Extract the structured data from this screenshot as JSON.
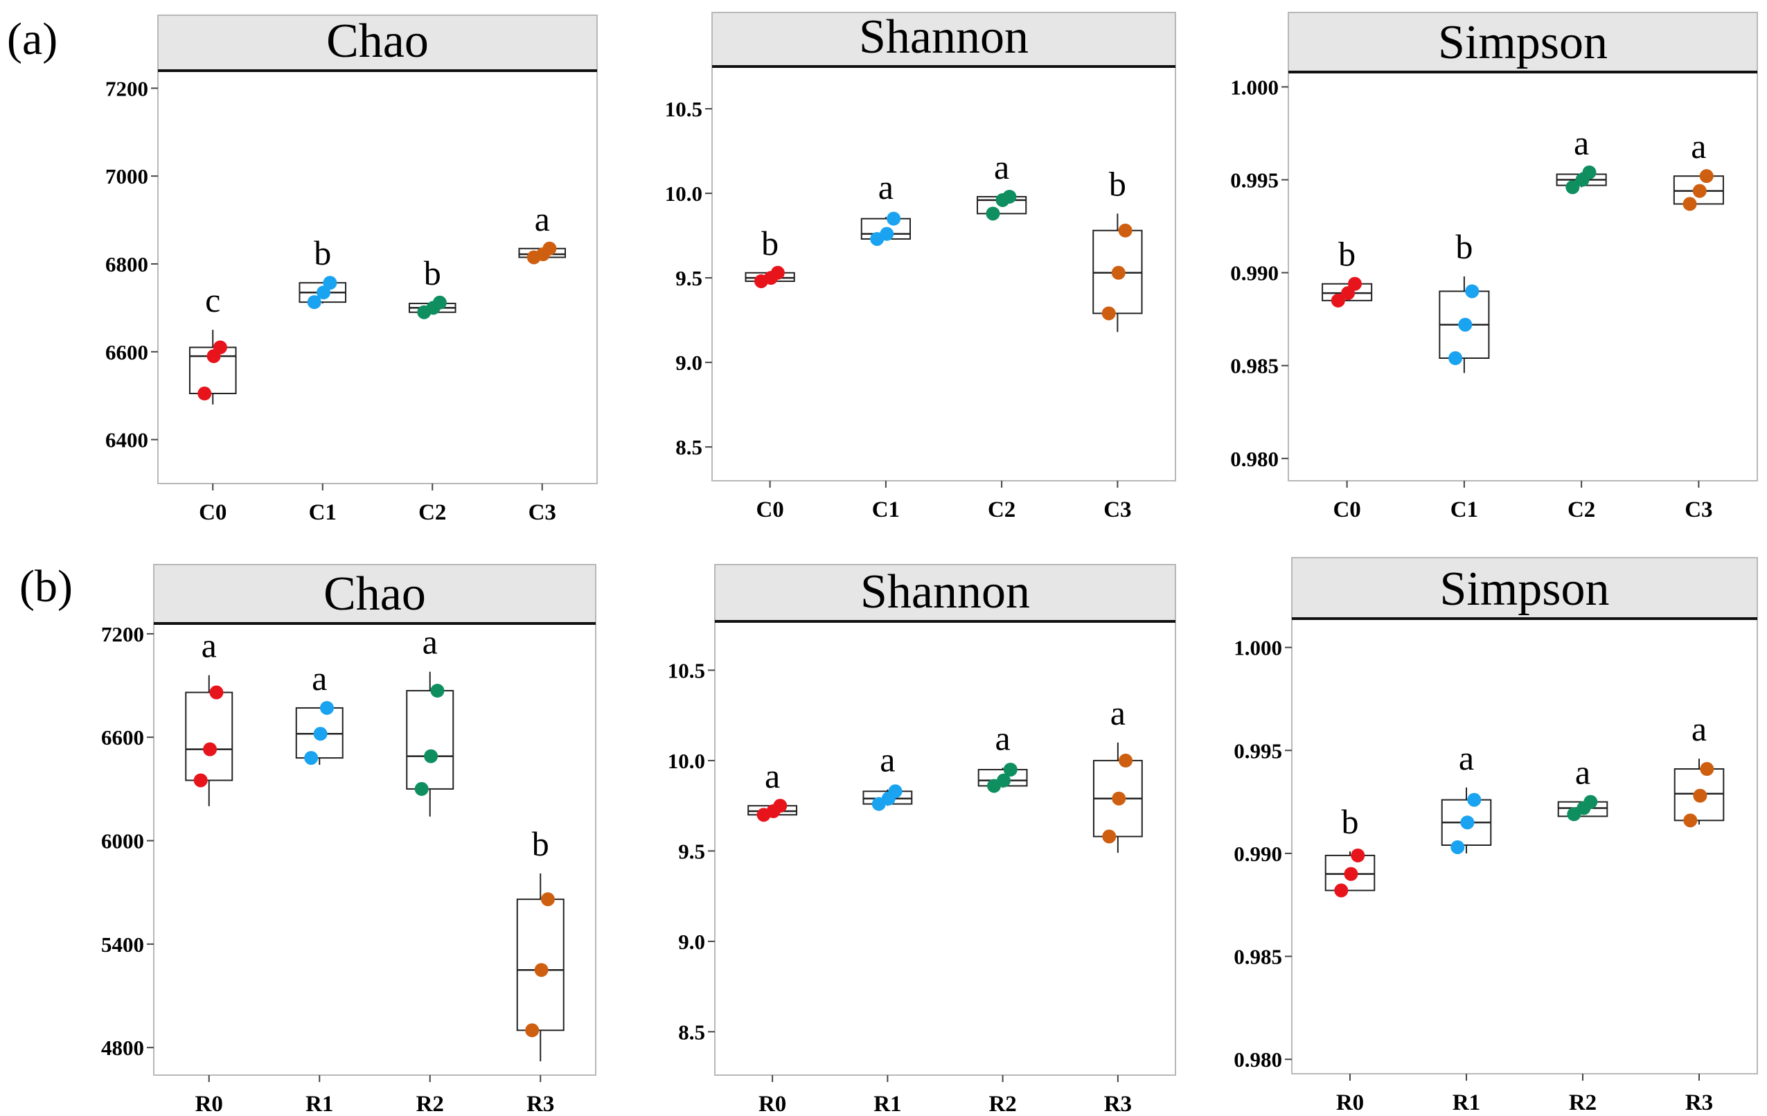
{
  "panel_labels": [
    "(a)",
    "(b)"
  ],
  "chart_data": [
    {
      "type": "box",
      "panel": "(a)",
      "title": "Chao",
      "categories": [
        "C0",
        "C1",
        "C2",
        "C3"
      ],
      "ylim": [
        6300,
        7240
      ],
      "yticks": [
        6400,
        6600,
        6800,
        7000,
        7200
      ],
      "ytick_labels": [
        "6400",
        "6600",
        "6800",
        "7000",
        "7200"
      ],
      "colors": [
        "#e8141c",
        "#1aa3f0",
        "#0f8f60",
        "#cf5f10"
      ],
      "groups": [
        {
          "label": "C0",
          "letter": "c",
          "min": 6480,
          "q1": 6505,
          "median": 6590,
          "q3": 6610,
          "max": 6650,
          "points": [
            6505,
            6590,
            6610
          ]
        },
        {
          "label": "C1",
          "letter": "b",
          "min": 6710,
          "q1": 6713,
          "median": 6735,
          "q3": 6757,
          "max": 6757,
          "points": [
            6713,
            6735,
            6757
          ]
        },
        {
          "label": "C2",
          "letter": "b",
          "min": 6688,
          "q1": 6690,
          "median": 6700,
          "q3": 6710,
          "max": 6712,
          "points": [
            6690,
            6700,
            6712
          ]
        },
        {
          "label": "C3",
          "letter": "a",
          "min": 6815,
          "q1": 6815,
          "median": 6822,
          "q3": 6835,
          "max": 6835,
          "points": [
            6815,
            6822,
            6835
          ]
        }
      ]
    },
    {
      "type": "box",
      "panel": "(a)",
      "title": "Shannon",
      "categories": [
        "C0",
        "C1",
        "C2",
        "C3"
      ],
      "ylim": [
        8.3,
        10.75
      ],
      "yticks": [
        8.5,
        9.0,
        9.5,
        10.0,
        10.5
      ],
      "ytick_labels": [
        "8.5",
        "9.0",
        "9.5",
        "10.0",
        "10.5"
      ],
      "colors": [
        "#e8141c",
        "#1aa3f0",
        "#0f8f60",
        "#cf5f10"
      ],
      "groups": [
        {
          "label": "C0",
          "letter": "b",
          "min": 9.47,
          "q1": 9.48,
          "median": 9.5,
          "q3": 9.53,
          "max": 9.53,
          "points": [
            9.48,
            9.5,
            9.53
          ]
        },
        {
          "label": "C1",
          "letter": "a",
          "min": 9.72,
          "q1": 9.73,
          "median": 9.76,
          "q3": 9.85,
          "max": 9.86,
          "points": [
            9.73,
            9.76,
            9.85
          ]
        },
        {
          "label": "C2",
          "letter": "a",
          "min": 9.88,
          "q1": 9.88,
          "median": 9.96,
          "q3": 9.98,
          "max": 9.98,
          "points": [
            9.88,
            9.96,
            9.98
          ]
        },
        {
          "label": "C3",
          "letter": "b",
          "min": 9.18,
          "q1": 9.29,
          "median": 9.53,
          "q3": 9.78,
          "max": 9.88,
          "points": [
            9.29,
            9.53,
            9.78
          ]
        }
      ]
    },
    {
      "type": "box",
      "panel": "(a)",
      "title": "Simpson",
      "categories": [
        "C0",
        "C1",
        "C2",
        "C3"
      ],
      "ylim": [
        0.9788,
        1.0008
      ],
      "yticks": [
        0.98,
        0.985,
        0.99,
        0.995,
        1.0
      ],
      "ytick_labels": [
        "0.980",
        "0.985",
        "0.990",
        "0.995",
        "1.000"
      ],
      "colors": [
        "#e8141c",
        "#1aa3f0",
        "#0f8f60",
        "#cf5f10"
      ],
      "groups": [
        {
          "label": "C0",
          "letter": "b",
          "min": 0.9885,
          "q1": 0.9885,
          "median": 0.9889,
          "q3": 0.9894,
          "max": 0.9894,
          "points": [
            0.9885,
            0.9889,
            0.9894
          ]
        },
        {
          "label": "C1",
          "letter": "b",
          "min": 0.9846,
          "q1": 0.9854,
          "median": 0.9872,
          "q3": 0.989,
          "max": 0.9898,
          "points": [
            0.9854,
            0.9872,
            0.989
          ]
        },
        {
          "label": "C2",
          "letter": "a",
          "min": 0.9946,
          "q1": 0.9947,
          "median": 0.995,
          "q3": 0.9953,
          "max": 0.9954,
          "points": [
            0.9946,
            0.995,
            0.9954
          ]
        },
        {
          "label": "C3",
          "letter": "a",
          "min": 0.9937,
          "q1": 0.9937,
          "median": 0.9944,
          "q3": 0.9952,
          "max": 0.9952,
          "points": [
            0.9937,
            0.9944,
            0.9952
          ]
        }
      ]
    },
    {
      "type": "box",
      "panel": "(b)",
      "title": "Chao",
      "categories": [
        "R0",
        "R1",
        "R2",
        "R3"
      ],
      "ylim": [
        4640,
        7260
      ],
      "yticks": [
        4800,
        5400,
        6000,
        6600,
        7200
      ],
      "ytick_labels": [
        "4800",
        "5400",
        "6000",
        "6600",
        "7200"
      ],
      "colors": [
        "#e8141c",
        "#1aa3f0",
        "#0f8f60",
        "#cf5f10"
      ],
      "groups": [
        {
          "label": "R0",
          "letter": "a",
          "min": 6200,
          "q1": 6350,
          "median": 6530,
          "q3": 6860,
          "max": 6960,
          "points": [
            6350,
            6530,
            6860
          ]
        },
        {
          "label": "R1",
          "letter": "a",
          "min": 6440,
          "q1": 6480,
          "median": 6620,
          "q3": 6770,
          "max": 6770,
          "points": [
            6480,
            6620,
            6770
          ]
        },
        {
          "label": "R2",
          "letter": "a",
          "min": 6140,
          "q1": 6300,
          "median": 6490,
          "q3": 6870,
          "max": 6980,
          "points": [
            6300,
            6490,
            6870
          ]
        },
        {
          "label": "R3",
          "letter": "b",
          "min": 4720,
          "q1": 4900,
          "median": 5250,
          "q3": 5660,
          "max": 5810,
          "points": [
            4900,
            5250,
            5660
          ]
        }
      ]
    },
    {
      "type": "box",
      "panel": "(b)",
      "title": "Shannon",
      "categories": [
        "R0",
        "R1",
        "R2",
        "R3"
      ],
      "ylim": [
        8.26,
        10.77
      ],
      "yticks": [
        8.5,
        9.0,
        9.5,
        10.0,
        10.5
      ],
      "ytick_labels": [
        "8.5",
        "9.0",
        "9.5",
        "10.0",
        "10.5"
      ],
      "colors": [
        "#e8141c",
        "#1aa3f0",
        "#0f8f60",
        "#cf5f10"
      ],
      "groups": [
        {
          "label": "R0",
          "letter": "a",
          "min": 9.7,
          "q1": 9.7,
          "median": 9.72,
          "q3": 9.75,
          "max": 9.75,
          "points": [
            9.7,
            9.72,
            9.75
          ]
        },
        {
          "label": "R1",
          "letter": "a",
          "min": 9.75,
          "q1": 9.76,
          "median": 9.79,
          "q3": 9.83,
          "max": 9.84,
          "points": [
            9.76,
            9.79,
            9.83
          ]
        },
        {
          "label": "R2",
          "letter": "a",
          "min": 9.85,
          "q1": 9.86,
          "median": 9.89,
          "q3": 9.95,
          "max": 9.96,
          "points": [
            9.86,
            9.89,
            9.95
          ]
        },
        {
          "label": "R3",
          "letter": "a",
          "min": 9.49,
          "q1": 9.58,
          "median": 9.79,
          "q3": 10.0,
          "max": 10.1,
          "points": [
            9.58,
            9.79,
            10.0
          ]
        }
      ]
    },
    {
      "type": "box",
      "panel": "(b)",
      "title": "Simpson",
      "categories": [
        "R0",
        "R1",
        "R2",
        "R3"
      ],
      "ylim": [
        0.9793,
        1.0014
      ],
      "yticks": [
        0.98,
        0.985,
        0.99,
        0.995,
        1.0
      ],
      "ytick_labels": [
        "0.980",
        "0.985",
        "0.990",
        "0.995",
        "1.000"
      ],
      "colors": [
        "#e8141c",
        "#1aa3f0",
        "#0f8f60",
        "#cf5f10"
      ],
      "groups": [
        {
          "label": "R0",
          "letter": "b",
          "min": 0.9882,
          "q1": 0.9882,
          "median": 0.989,
          "q3": 0.9899,
          "max": 0.9901,
          "points": [
            0.9882,
            0.989,
            0.9899
          ]
        },
        {
          "label": "R1",
          "letter": "a",
          "min": 0.99,
          "q1": 0.9904,
          "median": 0.9915,
          "q3": 0.9926,
          "max": 0.9932,
          "points": [
            0.9903,
            0.9915,
            0.9926
          ]
        },
        {
          "label": "R2",
          "letter": "a",
          "min": 0.9918,
          "q1": 0.9918,
          "median": 0.9922,
          "q3": 0.9925,
          "max": 0.9925,
          "points": [
            0.9919,
            0.9922,
            0.9925
          ]
        },
        {
          "label": "R3",
          "letter": "a",
          "min": 0.9914,
          "q1": 0.9916,
          "median": 0.9929,
          "q3": 0.9941,
          "max": 0.9946,
          "points": [
            0.9916,
            0.9928,
            0.9941
          ]
        }
      ]
    }
  ]
}
